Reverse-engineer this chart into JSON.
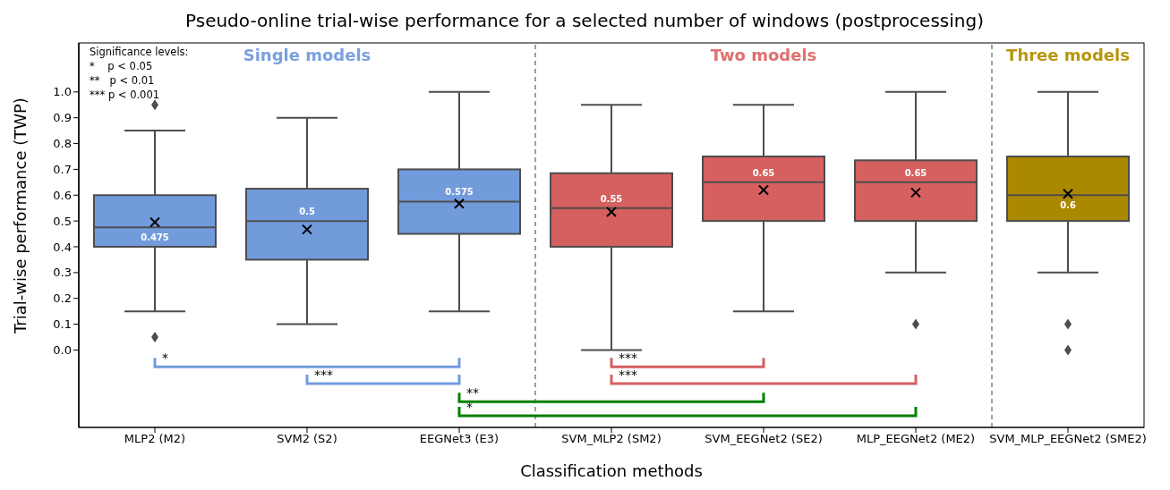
{
  "chart_data": {
    "type": "box",
    "title": "Pseudo-online trial-wise performance for a selected number of windows (postprocessing)",
    "xlabel": "Classification methods",
    "ylabel": "Trial-wise performance (TWP)",
    "categories": [
      "MLP2 (M2)",
      "SVM2 (S2)",
      "EEGNet3 (E3)",
      "SVM_MLP2 (SM2)",
      "SVM_EEGNet2 (SE2)",
      "MLP_EEGNet2 (ME2)",
      "SVM_MLP_EEGNet2 (SME2)"
    ],
    "colors": [
      "#729bdc",
      "#729bdc",
      "#729bdc",
      "#d65f5f",
      "#d65f5f",
      "#d65f5f",
      "#aa8800"
    ],
    "boxes": [
      {
        "low": 0.15,
        "q1": 0.4,
        "median": 0.475,
        "q3": 0.6,
        "high": 0.85,
        "mean": 0.495,
        "outliers": [
          0.95,
          0.05
        ]
      },
      {
        "low": 0.1,
        "q1": 0.35,
        "median": 0.5,
        "q3": 0.625,
        "high": 0.9,
        "mean": 0.467
      },
      {
        "low": 0.15,
        "q1": 0.45,
        "median": 0.575,
        "q3": 0.7,
        "high": 1.0,
        "mean": 0.567
      },
      {
        "low": 0.0,
        "q1": 0.4,
        "median": 0.55,
        "q3": 0.685,
        "high": 0.95,
        "mean": 0.535
      },
      {
        "low": 0.15,
        "q1": 0.5,
        "median": 0.65,
        "q3": 0.75,
        "high": 0.95,
        "mean": 0.62
      },
      {
        "low": 0.3,
        "q1": 0.5,
        "median": 0.65,
        "q3": 0.735,
        "high": 1.0,
        "mean": 0.61,
        "outliers": [
          0.1
        ]
      },
      {
        "low": 0.3,
        "q1": 0.5,
        "median": 0.6,
        "q3": 0.75,
        "high": 1.0,
        "mean": 0.605,
        "outliers": [
          0.1,
          0.0
        ]
      }
    ],
    "value_labels": [
      "0.475",
      "0.5",
      "0.575",
      "0.55",
      "0.65",
      "0.65",
      "0.6"
    ],
    "ylim": [
      -0.3,
      1.19
    ],
    "yticks": [
      {
        "value": 0,
        "label": "0.0"
      },
      {
        "value": 0.1,
        "label": "0.1"
      },
      {
        "value": 0.2,
        "label": "0.2"
      },
      {
        "value": 0.3,
        "label": "0.3"
      },
      {
        "value": 0.4,
        "label": "0.4"
      },
      {
        "value": 0.5,
        "label": "0.5"
      },
      {
        "value": 0.6,
        "label": "0.6"
      },
      {
        "value": 0.7,
        "label": "0.7"
      },
      {
        "value": 0.8,
        "label": "0.8"
      },
      {
        "value": 0.9,
        "label": "0.9"
      },
      {
        "value": 1.0,
        "label": "1.0"
      }
    ],
    "grid": false,
    "annotations": [
      "Significance levels:",
      "*    p < 0.05",
      "**   p < 0.01",
      "*** p < 0.001",
      "Single models",
      "Two models",
      "Three models",
      "*",
      "***",
      "***",
      "***",
      "**",
      "*"
    ]
  }
}
